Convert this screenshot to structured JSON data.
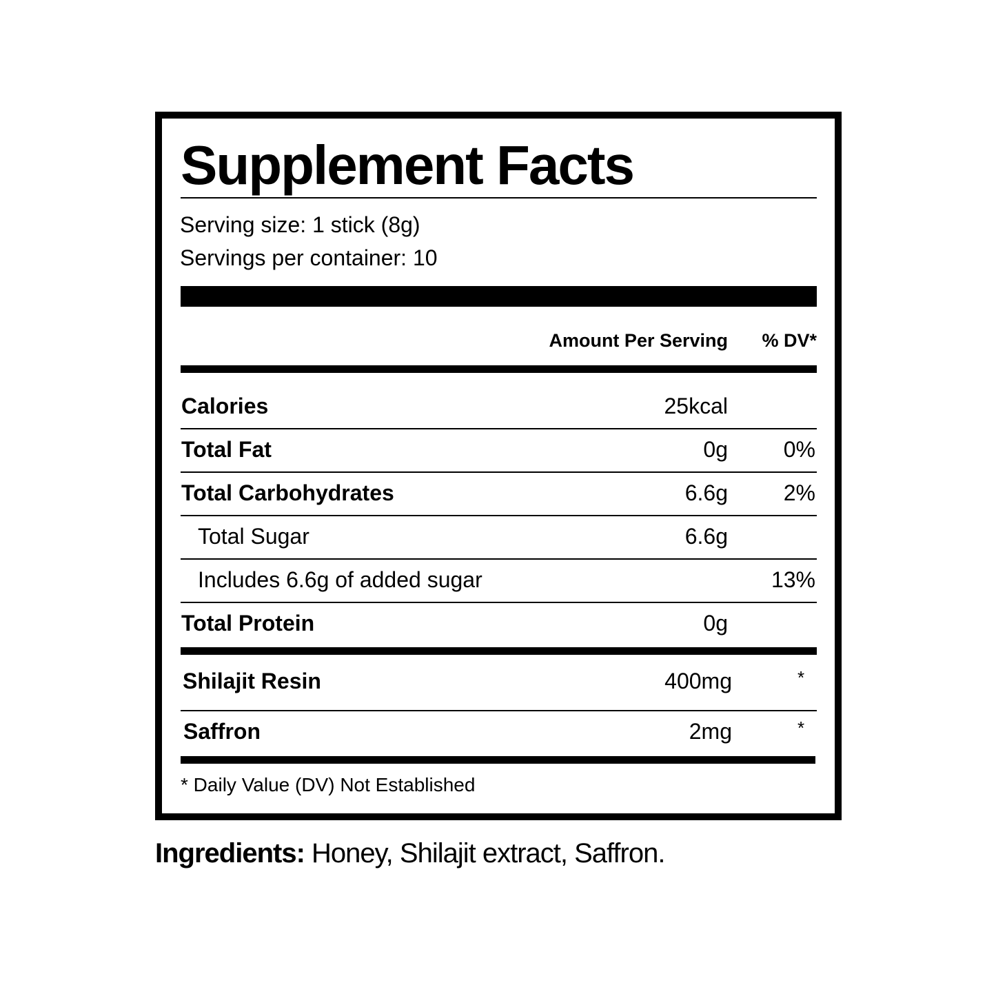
{
  "title": "Supplement Facts",
  "serving_size": "Serving size: 1 stick (8g)",
  "servings_per_container": "Servings per container: 10",
  "header": {
    "amount": "Amount Per Serving",
    "dv": "% DV*"
  },
  "rows": [
    {
      "label": "Calories",
      "amount": "25kcal",
      "dv": ""
    },
    {
      "label": "Total Fat",
      "amount": "0g",
      "dv": "0%"
    },
    {
      "label": "Total Carbohydrates",
      "amount": "6.6g",
      "dv": "2%"
    },
    {
      "label": "Total Sugar",
      "amount": "6.6g",
      "dv": ""
    },
    {
      "label": "Includes 6.6g of added sugar",
      "amount": "",
      "dv": "13%"
    },
    {
      "label": "Total Protein",
      "amount": "0g",
      "dv": ""
    }
  ],
  "ingredients_rows": [
    {
      "label": "Shilajit Resin",
      "amount": "400mg",
      "dv": "*"
    },
    {
      "label": "Saffron",
      "amount": "2mg",
      "dv": "*"
    }
  ],
  "footnote": "* Daily Value (DV) Not Established",
  "ingredients": {
    "label": "Ingredients:",
    "text": " Honey, Shilajit extract, Saffron."
  }
}
